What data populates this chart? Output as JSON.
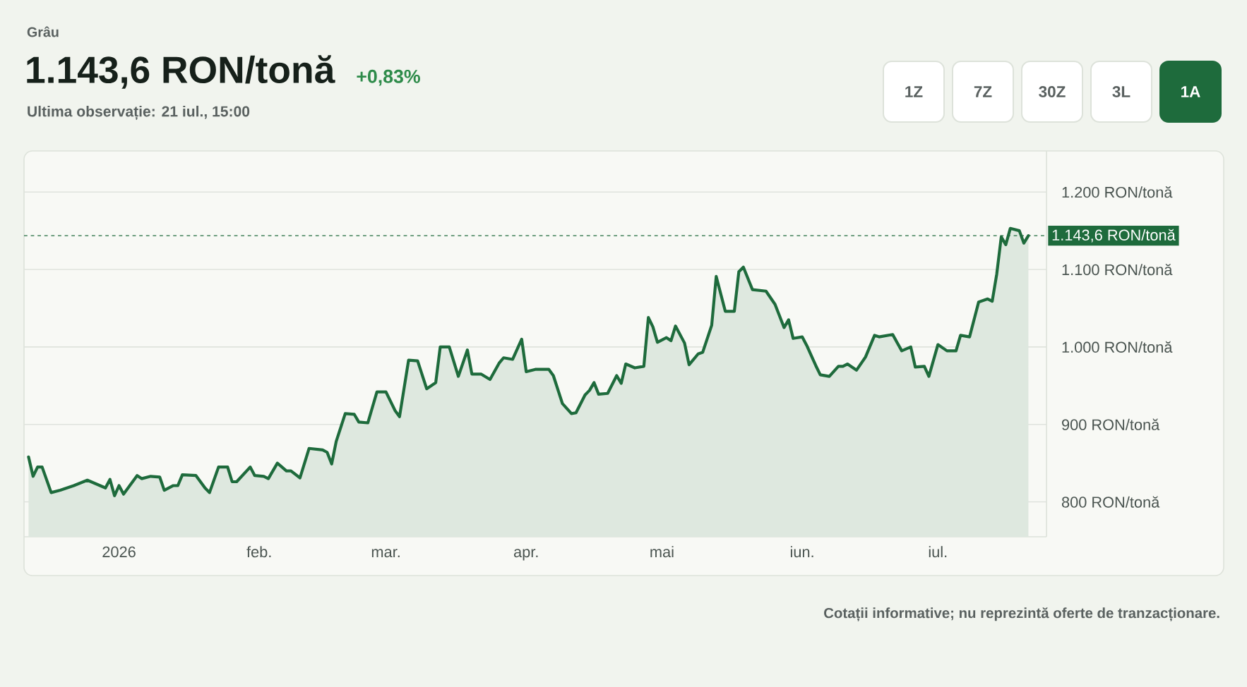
{
  "chart_data": {
    "type": "area",
    "title": "Grâu",
    "subtitle": "Ultima observație: 21 iul., 15:00",
    "annotations": [
      "1.143,6 RON/tonă",
      "+0,83%",
      "1Z",
      "7Z",
      "30Z",
      "3L",
      "1A",
      "Cotații informative; nu reprezintă oferte de tranzacționare."
    ],
    "x": [
      "2025-12-12",
      "2025-12-13",
      "2025-12-14",
      "2025-12-15",
      "2025-12-17",
      "2025-12-19",
      "2025-12-22",
      "2025-12-25",
      "2025-12-27",
      "2025-12-29",
      "2025-12-30",
      "2025-12-31",
      "2026-01-01",
      "2026-01-02",
      "2026-01-05",
      "2026-01-06",
      "2026-01-08",
      "2026-01-10",
      "2026-01-11",
      "2026-01-13",
      "2026-01-14",
      "2026-01-15",
      "2026-01-18",
      "2026-01-20",
      "2026-01-21",
      "2026-01-23",
      "2026-01-25",
      "2026-01-26",
      "2026-01-27",
      "2026-01-30",
      "2026-01-31",
      "2026-02-02",
      "2026-02-03",
      "2026-02-05",
      "2026-02-07",
      "2026-02-08",
      "2026-02-10",
      "2026-02-12",
      "2026-02-15",
      "2026-02-16",
      "2026-02-17",
      "2026-02-18",
      "2026-02-20",
      "2026-02-22",
      "2026-02-23",
      "2026-02-25",
      "2026-02-27",
      "2026-03-01",
      "2026-03-03",
      "2026-03-04",
      "2026-03-06",
      "2026-03-08",
      "2026-03-10",
      "2026-03-12",
      "2026-03-13",
      "2026-03-15",
      "2026-03-17",
      "2026-03-19",
      "2026-03-20",
      "2026-03-22",
      "2026-03-24",
      "2026-03-26",
      "2026-03-27",
      "2026-03-29",
      "2026-03-31",
      "2026-04-01",
      "2026-04-03",
      "2026-04-06",
      "2026-04-07",
      "2026-04-09",
      "2026-04-11",
      "2026-04-12",
      "2026-04-14",
      "2026-04-15",
      "2026-04-16",
      "2026-04-17",
      "2026-04-19",
      "2026-04-21",
      "2026-04-22",
      "2026-04-23",
      "2026-04-25",
      "2026-04-27",
      "2026-04-28",
      "2026-04-29",
      "2026-04-30",
      "2026-05-02",
      "2026-05-03",
      "2026-05-04",
      "2026-05-06",
      "2026-05-07",
      "2026-05-09",
      "2026-05-10",
      "2026-05-12",
      "2026-05-13",
      "2026-05-15",
      "2026-05-17",
      "2026-05-18",
      "2026-05-19",
      "2026-05-21",
      "2026-05-24",
      "2026-05-26",
      "2026-05-28",
      "2026-05-29",
      "2026-05-30",
      "2026-06-01",
      "2026-06-02",
      "2026-06-04",
      "2026-06-05",
      "2026-06-07",
      "2026-06-09",
      "2026-06-10",
      "2026-06-11",
      "2026-06-13",
      "2026-06-15",
      "2026-06-17",
      "2026-06-18",
      "2026-06-21",
      "2026-06-23",
      "2026-06-25",
      "2026-06-26",
      "2026-06-28",
      "2026-06-29",
      "2026-07-01",
      "2026-07-03",
      "2026-07-05",
      "2026-07-06",
      "2026-07-08",
      "2026-07-10",
      "2026-07-12",
      "2026-07-13",
      "2026-07-14",
      "2026-07-15",
      "2026-07-16",
      "2026-07-17",
      "2026-07-19",
      "2026-07-20",
      "2026-07-21"
    ],
    "series": [
      {
        "color": "#1e6b3c",
        "values": [
          858,
          833,
          845,
          845,
          812,
          815,
          821,
          828,
          823,
          818,
          829,
          808,
          821,
          810,
          834,
          830,
          833,
          832,
          815,
          821,
          821,
          835,
          834,
          818,
          812,
          845,
          845,
          826,
          826,
          845,
          834,
          833,
          830,
          850,
          840,
          840,
          831,
          869,
          867,
          864,
          849,
          878,
          914,
          913,
          903,
          902,
          942,
          942,
          918,
          910,
          983,
          982,
          946,
          954,
          1000,
          1000,
          962,
          996,
          965,
          965,
          958,
          979,
          986,
          984,
          1010,
          968,
          971,
          971,
          963,
          927,
          914,
          915,
          938,
          944,
          954,
          939,
          940,
          963,
          953,
          978,
          973,
          975,
          1038,
          1026,
          1006,
          1012,
          1008,
          1027,
          1005,
          977,
          991,
          993,
          1028,
          1091,
          1046,
          1046,
          1097,
          1103,
          1074,
          1072,
          1055,
          1025,
          1035,
          1011,
          1013,
          1002,
          976,
          964,
          962,
          975,
          975,
          978,
          970,
          987,
          1015,
          1013,
          1016,
          995,
          1000,
          974,
          975,
          962,
          1003,
          995,
          995,
          1015,
          1013,
          1058,
          1062,
          1059,
          1094,
          1142,
          1132,
          1153,
          1150,
          1134,
          1143.6
        ]
      }
    ],
    "xlim": [
      "2025-12-11",
      "2026-07-25"
    ],
    "xticks": [
      {
        "value": "2026-01-01",
        "label": "2026"
      },
      {
        "value": "2026-02-01",
        "label": "feb."
      },
      {
        "value": "2026-03-01",
        "label": "mar."
      },
      {
        "value": "2026-04-01",
        "label": "apr."
      },
      {
        "value": "2026-05-01",
        "label": "mai"
      },
      {
        "value": "2026-06-01",
        "label": "iun."
      },
      {
        "value": "2026-07-01",
        "label": "iul."
      }
    ],
    "ylim": [
      755,
      1253
    ],
    "yticks": [
      {
        "value": 800,
        "label": "800 RON/tonă"
      },
      {
        "value": 900,
        "label": "900 RON/tonă"
      },
      {
        "value": 1000,
        "label": "1.000 RON/tonă"
      },
      {
        "value": 1100,
        "label": "1.100 RON/tonă"
      },
      {
        "value": 1200,
        "label": "1.200 RON/tonă"
      }
    ],
    "ref_lines": [
      {
        "axis": "y",
        "value": 1143.6,
        "label": "1.143,6 RON/tonă",
        "color": "#1e6b3c",
        "line_style": "dotted"
      }
    ],
    "grid": "y"
  }
}
